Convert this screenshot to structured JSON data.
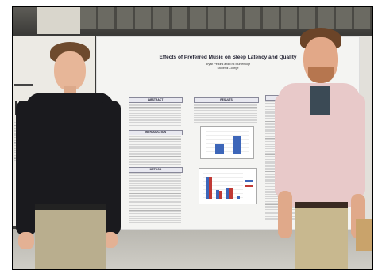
{
  "poster": {
    "title": "Effects of Preferred Music on Sleep Latency and Quality",
    "authors": "Bryan Perkins and Erik Muhlenkopf",
    "affiliation": "Stonehill College",
    "sections": {
      "abstract": "ABSTRACT",
      "introduction": "INTRODUCTION",
      "method": "METHOD",
      "results": "RESULTS",
      "discussion": "DISCUSSION"
    }
  },
  "colors": {
    "shirt_left": "#1a1a1e",
    "shirt_right": "#e8c9c9",
    "pants": "#b9ae8e",
    "chart_blue": "#3d66b9",
    "chart_red": "#c13a35"
  }
}
